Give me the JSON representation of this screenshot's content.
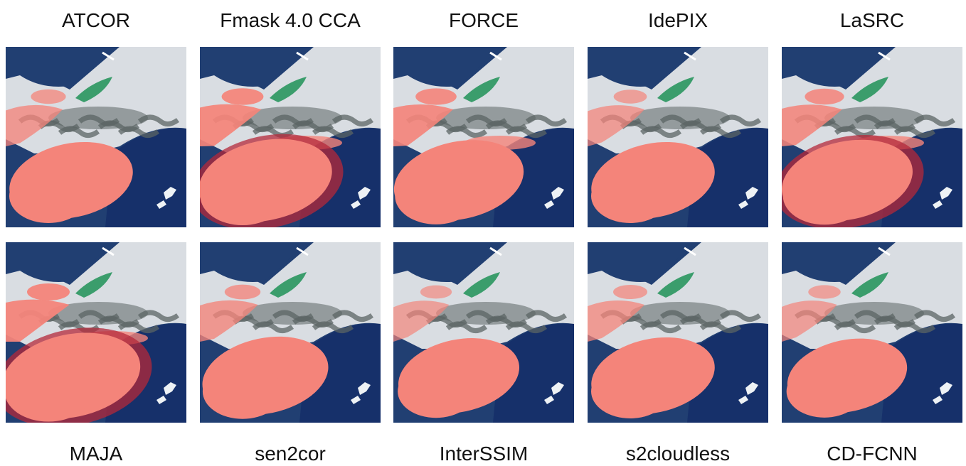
{
  "figure": {
    "top_labels": [
      "ATCOR",
      "Fmask 4.0 CCA",
      "FORCE",
      "IdePIX",
      "LaSRC"
    ],
    "bottom_labels": [
      "MAJA",
      "sen2cor",
      "InterSSIM",
      "s2cloudless",
      "CD-FCNN"
    ],
    "colors": {
      "sea": "#213f72",
      "deep_sea": "#16306a",
      "land": "#d9dde2",
      "terrain": "#5b6464",
      "green_patch": "#3b9d6c",
      "cloud_mask": "#f4847a",
      "dark_mask": "#b4283a"
    }
  }
}
